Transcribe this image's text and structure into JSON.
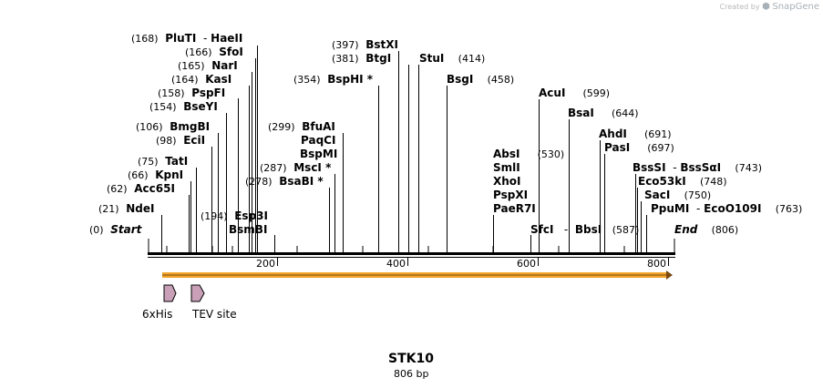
{
  "watermark": {
    "prefix": "Created by",
    "brand": "SnapGene"
  },
  "sequence": {
    "name": "STK10",
    "length_label": "806 bp",
    "length": 806
  },
  "ruler": {
    "ticks": [
      "200",
      "400",
      "600",
      "800"
    ]
  },
  "features": [
    {
      "name": "6xHis",
      "color": "#c9a0b8"
    },
    {
      "name": "TEV site",
      "color": "#c9a0b8"
    }
  ],
  "orf_color": "#f2a52a",
  "sites": {
    "plutI": {
      "pos": "(168)",
      "name": "PluTI",
      "name2": "HaeII",
      "sep": "-"
    },
    "sfoI": {
      "pos": "(166)",
      "name": "SfoI"
    },
    "narI": {
      "pos": "(165)",
      "name": "NarI"
    },
    "kasI": {
      "pos": "(164)",
      "name": "KasI"
    },
    "pspfI": {
      "pos": "(158)",
      "name": "PspFI"
    },
    "bseyI": {
      "pos": "(154)",
      "name": "BseYI"
    },
    "bmgbI": {
      "pos": "(106)",
      "name": "BmgBI"
    },
    "eciI": {
      "pos": "(98)",
      "name": "EciI"
    },
    "tatI": {
      "pos": "(75)",
      "name": "TatI"
    },
    "kpnI": {
      "pos": "(66)",
      "name": "KpnI"
    },
    "acc65I": {
      "pos": "(62)",
      "name": "Acc65I"
    },
    "ndeI": {
      "pos": "(21)",
      "name": "NdeI"
    },
    "start": {
      "pos": "(0)",
      "name": "Start"
    },
    "esp3I": {
      "pos": "(194)",
      "name": "Esp3I"
    },
    "bsmbI": {
      "name": "BsmBI"
    },
    "bstxI": {
      "pos": "(397)",
      "name": "BstXI"
    },
    "btgI": {
      "pos": "(381)",
      "name": "BtgI"
    },
    "stuI": {
      "pos": "(414)",
      "name": "StuI"
    },
    "bsphI": {
      "pos": "(354)",
      "name": "BspHI *"
    },
    "bsgI": {
      "pos": "(458)",
      "name": "BsgI"
    },
    "bfuAI": {
      "pos": "(299)",
      "name": "BfuAI"
    },
    "paqCI": {
      "name": "PaqCI"
    },
    "bspMI": {
      "name": "BspMI"
    },
    "mscI": {
      "pos": "(287)",
      "name": "MscI *"
    },
    "bsaBI": {
      "pos": "(278)",
      "name": "BsaBI *"
    },
    "acuI": {
      "pos": "(599)",
      "name": "AcuI"
    },
    "bsaI": {
      "pos": "(644)",
      "name": "BsaI"
    },
    "ahdI": {
      "pos": "(691)",
      "name": "AhdI"
    },
    "pasI": {
      "pos": "(697)",
      "name": "PasI"
    },
    "absI": {
      "pos": "(530)",
      "name": "AbsI"
    },
    "smlI": {
      "name": "SmlI"
    },
    "xhoI": {
      "name": "XhoI"
    },
    "pspXI": {
      "name": "PspXI"
    },
    "paeR7I": {
      "name": "PaeR7I"
    },
    "bssSI": {
      "pos": "(743)",
      "name": "BssSI",
      "name2": "BssSαI",
      "sep": "-"
    },
    "eco53kI": {
      "pos": "(748)",
      "name": "Eco53kI"
    },
    "sacI": {
      "pos": "(750)",
      "name": "SacI"
    },
    "ppuMI": {
      "pos": "(763)",
      "name": "PpuMI",
      "name2": "EcoO109I",
      "sep": "-"
    },
    "sfcI": {
      "pos": "(587)",
      "name": "SfcI",
      "name2": "BbsI",
      "sep": "-"
    },
    "end": {
      "pos": "(806)",
      "name": "End"
    }
  }
}
